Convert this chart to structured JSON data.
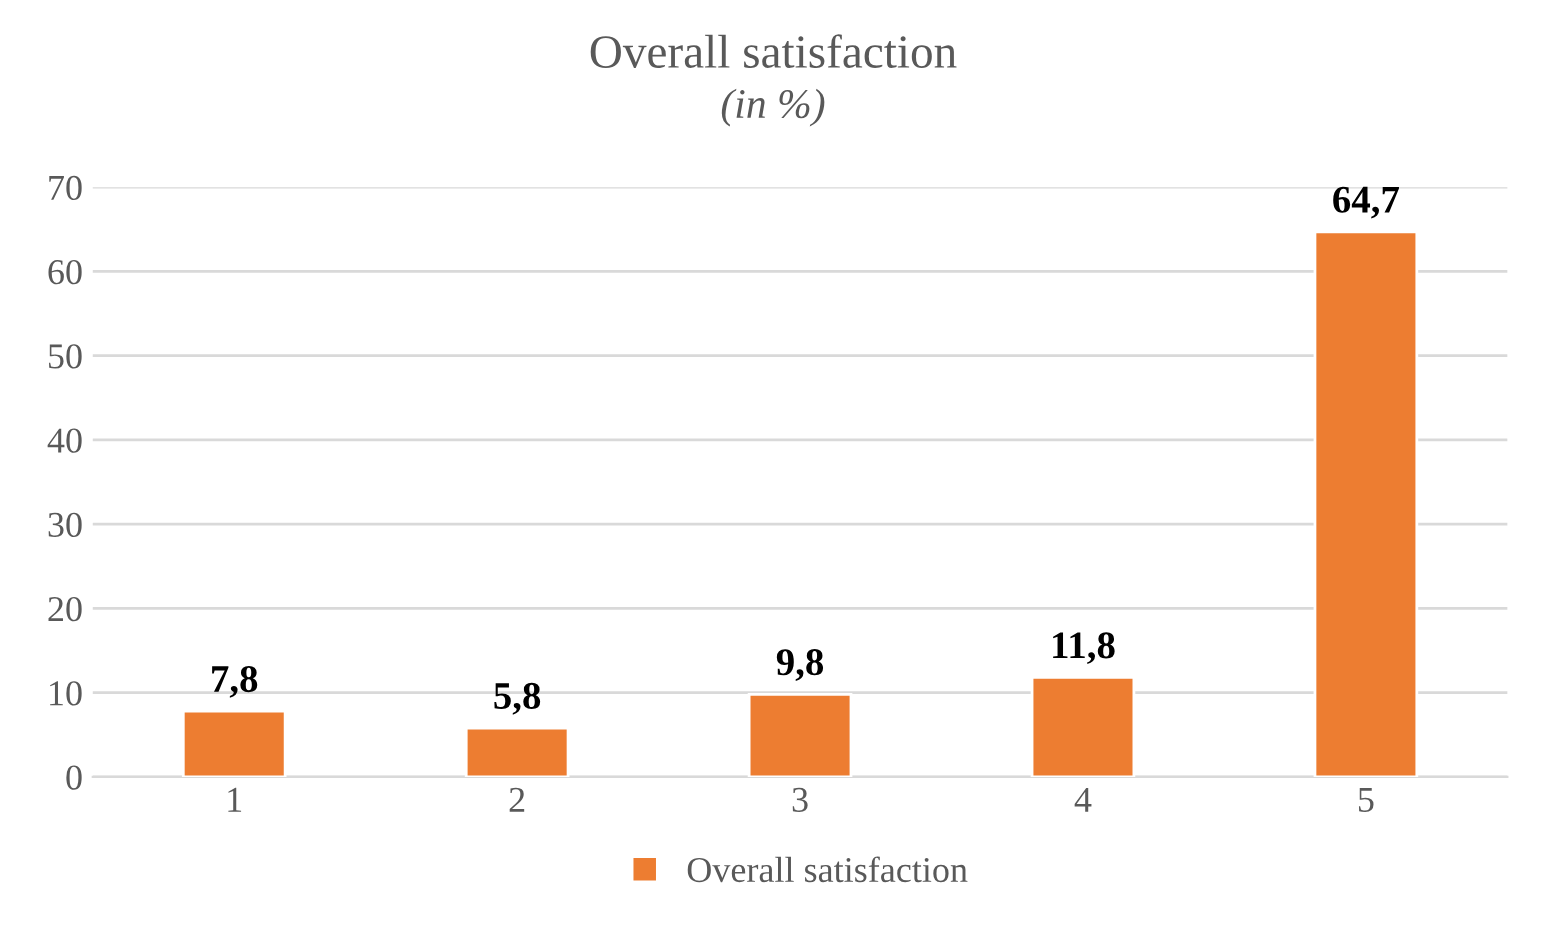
{
  "chart_data": {
    "type": "bar",
    "title": "Overall satisfaction",
    "subtitle": "(in %)",
    "categories": [
      "1",
      "2",
      "3",
      "4",
      "5"
    ],
    "series": [
      {
        "name": "Overall satisfaction",
        "color": "#ed7d31",
        "values": [
          7.8,
          5.8,
          9.8,
          11.8,
          64.7
        ],
        "value_labels": [
          "7,8",
          "5,8",
          "9,8",
          "11,8",
          "64,7"
        ]
      }
    ],
    "ylim": [
      0,
      70
    ],
    "yticks": [
      0,
      10,
      20,
      30,
      40,
      50,
      60,
      70
    ],
    "grid": "y",
    "legend": "bottom"
  }
}
